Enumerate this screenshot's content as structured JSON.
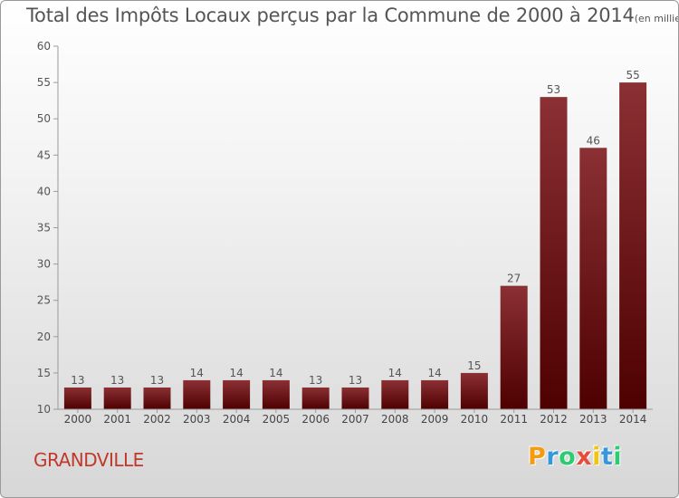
{
  "chart_data": {
    "type": "bar",
    "title": "Total des Impôts Locaux perçus par la Commune de 2000 à 2014",
    "unit_label": "(en milliers d'€)",
    "categories": [
      "2000",
      "2001",
      "2002",
      "2003",
      "2004",
      "2005",
      "2006",
      "2007",
      "2008",
      "2009",
      "2010",
      "2011",
      "2012",
      "2013",
      "2014"
    ],
    "values": [
      13,
      13,
      13,
      14,
      14,
      14,
      13,
      13,
      14,
      14,
      15,
      27,
      53,
      46,
      55
    ],
    "ylim": [
      10,
      60
    ],
    "yticks": [
      10,
      15,
      20,
      25,
      30,
      35,
      40,
      45,
      50,
      55,
      60
    ],
    "xlabel": "",
    "ylabel": "",
    "grid": false,
    "bar_color_top": "#8b3034",
    "bar_color_bottom": "#4e0000"
  },
  "footer": {
    "commune": "GRANDVILLE",
    "logo_letters": [
      "P",
      "r",
      "o",
      "x",
      "i",
      "t",
      "i"
    ],
    "logo_colors": [
      "#f39c12",
      "#3498db",
      "#2ecc71",
      "#e74c3c",
      "#f1c40f",
      "#3498db",
      "#2ecc71"
    ]
  }
}
